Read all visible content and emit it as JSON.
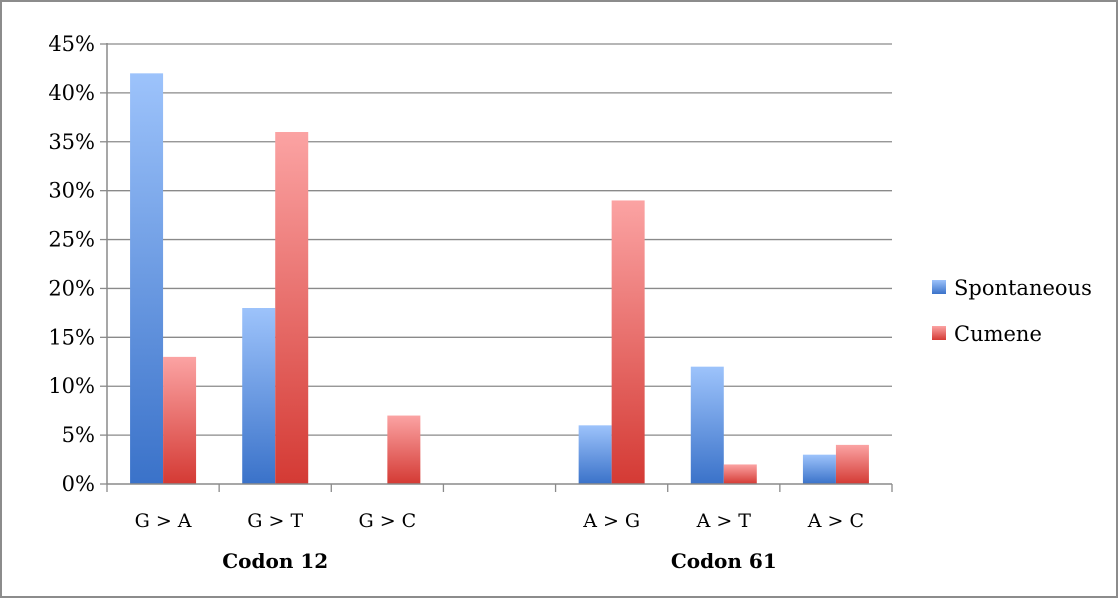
{
  "chart_data": {
    "type": "bar",
    "categories": [
      "G > A",
      "G > T",
      "G > C",
      "",
      "A > G",
      "A > T",
      "A > C"
    ],
    "groups": [
      {
        "label": "Codon 12",
        "categories": [
          "G > A",
          "G > T",
          "G > C"
        ]
      },
      {
        "label": "Codon 61",
        "categories": [
          "A > G",
          "A > T",
          "A > C"
        ]
      }
    ],
    "series": [
      {
        "name": "Spontaneous",
        "color": "#4f86d6",
        "values": [
          42,
          18,
          0,
          null,
          6,
          12,
          3
        ]
      },
      {
        "name": "Cumene",
        "color": "#d9453f",
        "values": [
          13,
          36,
          7,
          null,
          29,
          2,
          4
        ]
      }
    ],
    "yticks": [
      "0%",
      "5%",
      "10%",
      "15%",
      "20%",
      "25%",
      "30%",
      "35%",
      "40%",
      "45%"
    ],
    "ylim": [
      0,
      45
    ],
    "ytick_step": 5,
    "title": "",
    "xlabel": "",
    "ylabel": "",
    "grid": true,
    "legend_position": "right"
  }
}
